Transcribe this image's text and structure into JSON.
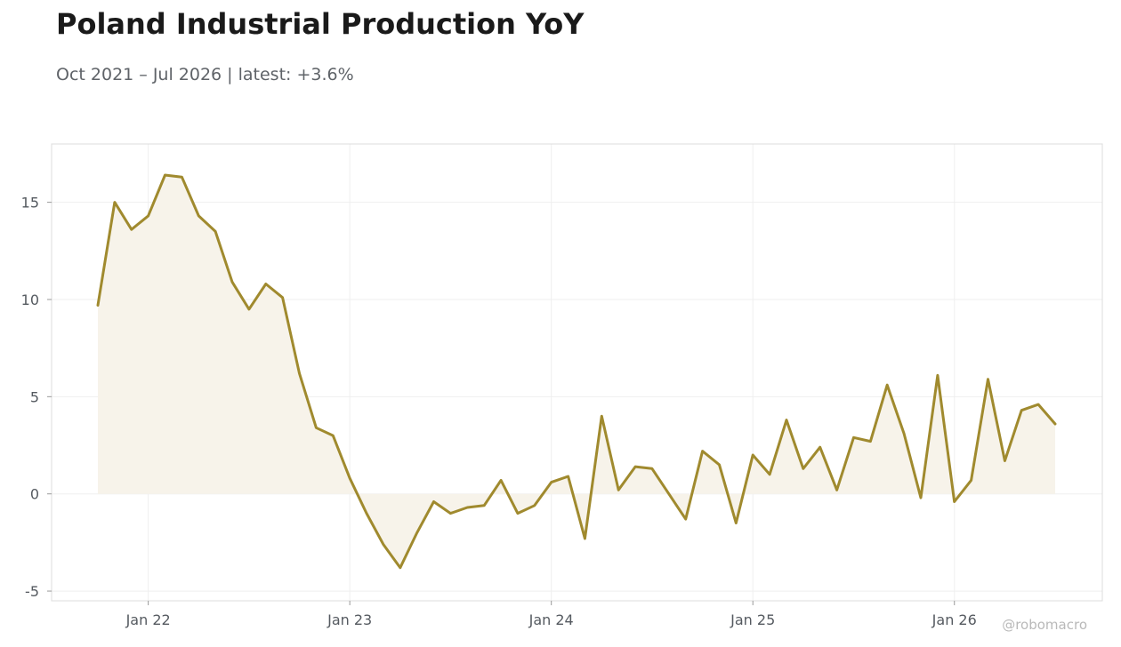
{
  "header": {
    "title": "Poland Industrial Production YoY",
    "subtitle": "Oct 2021 – Jul 2026 | latest: +3.6%"
  },
  "watermark": "@robomacro",
  "chart_data": {
    "type": "area",
    "title": "Poland Industrial Production YoY",
    "subtitle": "Oct 2021 – Jul 2026 | latest: +3.6%",
    "xlabel": "",
    "ylabel": "",
    "x_start": "2021-10",
    "x_end": "2026-07",
    "x": [
      "2021-10",
      "2021-11",
      "2021-12",
      "2022-01",
      "2022-02",
      "2022-03",
      "2022-04",
      "2022-05",
      "2022-06",
      "2022-07",
      "2022-08",
      "2022-09",
      "2022-10",
      "2022-11",
      "2022-12",
      "2023-01",
      "2023-02",
      "2023-03",
      "2023-04",
      "2023-05",
      "2023-06",
      "2023-07",
      "2023-08",
      "2023-09",
      "2023-10",
      "2023-11",
      "2023-12",
      "2024-01",
      "2024-02",
      "2024-03",
      "2024-04",
      "2024-05",
      "2024-06",
      "2024-07",
      "2024-08",
      "2024-09",
      "2024-10",
      "2024-11",
      "2024-12",
      "2025-01",
      "2025-02",
      "2025-03",
      "2025-04",
      "2025-05",
      "2025-06",
      "2025-07",
      "2025-08",
      "2025-09",
      "2025-10",
      "2025-11",
      "2025-12",
      "2026-01",
      "2026-02",
      "2026-03",
      "2026-04",
      "2026-05",
      "2026-06",
      "2026-07"
    ],
    "values": [
      9.7,
      15.0,
      13.6,
      14.3,
      16.4,
      16.3,
      14.3,
      13.5,
      10.9,
      9.5,
      10.8,
      10.1,
      6.2,
      3.4,
      3.0,
      0.8,
      -1.0,
      -2.6,
      -3.8,
      -2.0,
      -0.4,
      -1.0,
      -0.7,
      -0.6,
      0.7,
      -1.0,
      -0.6,
      0.6,
      0.9,
      -2.3,
      4.0,
      0.2,
      1.4,
      1.3,
      0.0,
      -1.3,
      2.2,
      1.5,
      -1.5,
      2.0,
      1.0,
      3.8,
      1.3,
      2.4,
      0.2,
      2.9,
      2.7,
      5.6,
      3.1,
      -0.2,
      6.1,
      -0.4,
      0.7,
      5.9,
      1.7,
      4.3,
      4.6,
      3.6
    ],
    "ylim": [
      -5.5,
      18
    ],
    "y_ticks": [
      -5,
      0,
      5,
      10,
      15
    ],
    "y_tick_labels": [
      "-5",
      "0",
      "5",
      "10",
      "15"
    ],
    "x_ticks": [
      "2022-01",
      "2023-01",
      "2024-01",
      "2025-01",
      "2026-01"
    ],
    "x_tick_labels": [
      "Jan 22",
      "Jan 23",
      "Jan 24",
      "Jan 25",
      "Jan 26"
    ],
    "grid": true,
    "legend": "none",
    "colors": {
      "line": "#a08a2e",
      "fill": "#f7f3ea",
      "grid": "#efefef",
      "frame": "#dddddd"
    }
  }
}
